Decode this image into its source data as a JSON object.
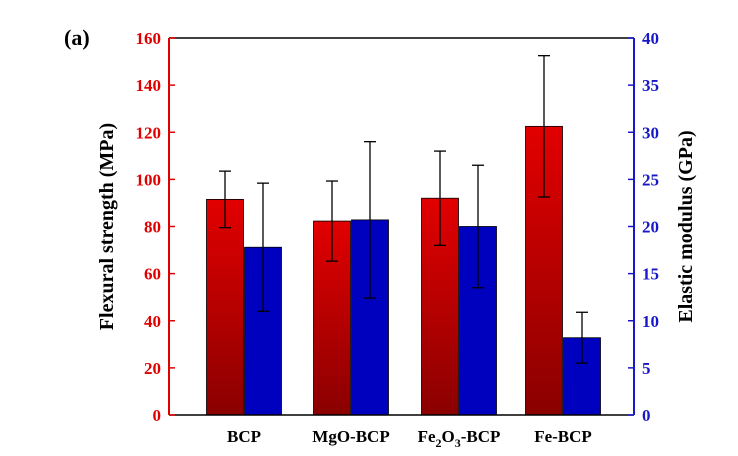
{
  "panel_label": "(a)",
  "colors": {
    "flexural_bar": "#e20000",
    "flexural_bar_dark": "#8a0000",
    "modulus_bar": "#0000bf",
    "left_axis": "#e00000",
    "right_axis": "#1818c8"
  },
  "chart_data": {
    "type": "bar",
    "categories": [
      "BCP",
      "MgO-BCP",
      "Fe2O3-BCP",
      "Fe-BCP"
    ],
    "category_labels": [
      {
        "main": "BCP",
        "sub": "",
        "tail": ""
      },
      {
        "main": "MgO-BCP",
        "sub": "",
        "tail": ""
      },
      {
        "main": "Fe",
        "sub": "2",
        "tail": "O"
      },
      {
        "main": "Fe-BCP",
        "sub": "",
        "tail": ""
      }
    ],
    "category_label_extra": {
      "sub2": "3",
      "tail2": "-BCP"
    },
    "series": [
      {
        "axis": "left",
        "values": [
          91.5,
          82.3,
          92.0,
          122.5
        ],
        "errors": [
          12,
          17,
          20,
          30
        ]
      },
      {
        "axis": "right",
        "values": [
          17.8,
          20.7,
          20.0,
          8.2
        ],
        "errors": [
          6.8,
          8.3,
          6.5,
          2.7
        ]
      }
    ],
    "ylabel": "Flexural strength (MPa)",
    "y2label": "Elastic modulus (GPa)",
    "ylim": [
      0,
      160
    ],
    "y2lim": [
      0,
      40
    ],
    "yticks": [
      0,
      20,
      40,
      60,
      80,
      100,
      120,
      140,
      160
    ],
    "y2ticks": [
      0,
      5,
      10,
      15,
      20,
      25,
      30,
      35,
      40
    ],
    "grid": false,
    "legend": "none"
  }
}
